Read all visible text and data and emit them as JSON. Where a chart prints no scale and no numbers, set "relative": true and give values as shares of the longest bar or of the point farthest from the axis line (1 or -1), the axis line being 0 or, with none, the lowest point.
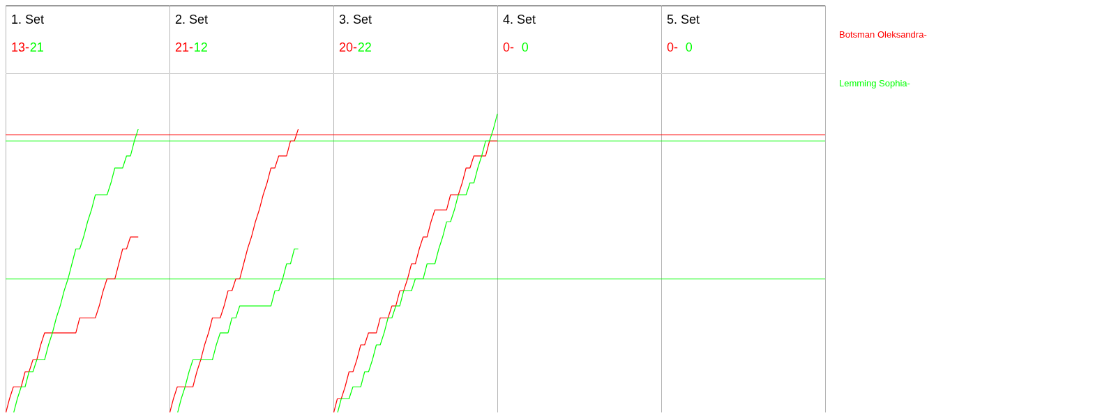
{
  "chart_data": {
    "type": "line",
    "relative": true,
    "legend": "right",
    "annotations": [
      "1. Set",
      "13-",
      "21",
      "2. Set",
      "21-",
      "12",
      "3. Set",
      "20-",
      "22",
      "4. Set",
      "0-",
      "0",
      "5. Set",
      "0-",
      "0"
    ],
    "categories": [
      null,
      null,
      null,
      null,
      null,
      null,
      null,
      null,
      null,
      null,
      null,
      null,
      null,
      null,
      null,
      null,
      null,
      null,
      null,
      null,
      null,
      null,
      null,
      null,
      null,
      null,
      null,
      null,
      null,
      null,
      null,
      null,
      null,
      null,
      null,
      null,
      null,
      null,
      null,
      null,
      null,
      null,
      null,
      null,
      null,
      null,
      null,
      null,
      null,
      null,
      null,
      null,
      null,
      null,
      null,
      null,
      null,
      null,
      null,
      null,
      null,
      null,
      null,
      null,
      null,
      null,
      null,
      null,
      null,
      null,
      null,
      null,
      null,
      null,
      null,
      null,
      null,
      null,
      null,
      null,
      null,
      null,
      null,
      null,
      null,
      null,
      null,
      null,
      null,
      null,
      null,
      null,
      null,
      null,
      null,
      null,
      null,
      null,
      null,
      null,
      null,
      null,
      null,
      null,
      null,
      null,
      null,
      null,
      null,
      null,
      null,
      null,
      null,
      null,
      null,
      null,
      null,
      null,
      null,
      null,
      null,
      null,
      null,
      null,
      null,
      null,
      null,
      null,
      null,
      null,
      null,
      null,
      null,
      null,
      null,
      null,
      null,
      null,
      null,
      null,
      null,
      null,
      null,
      null,
      null,
      null,
      null,
      null,
      null,
      null,
      null,
      null,
      null,
      null,
      null,
      null,
      null,
      null,
      null,
      null,
      null,
      null,
      null,
      null,
      null,
      null,
      null,
      null,
      null,
      null,
      null,
      null,
      null,
      null,
      null,
      null,
      null,
      null,
      null,
      null,
      null,
      null,
      null,
      null,
      null,
      null,
      null,
      null,
      null,
      null,
      null,
      null,
      null,
      null,
      null,
      null,
      null,
      null,
      null,
      null,
      null,
      null,
      null,
      null,
      null,
      null,
      null,
      null,
      null,
      null,
      null
    ],
    "series": [
      {
        "name": "Botsman Oleksandra-",
        "color": "#ff0000",
        "values": [
          0,
          0.05,
          0.09,
          0.09,
          0.09,
          0.14,
          0.14,
          0.18,
          0.18,
          0.23,
          0.27,
          0.27,
          0.27,
          0.27,
          0.27,
          0.27,
          0.27,
          0.27,
          0.27,
          0.32,
          0.32,
          0.32,
          0.32,
          0.32,
          0.36,
          0.41,
          0.45,
          0.45,
          0.45,
          0.5,
          0.55,
          0.55,
          0.59,
          0.59,
          0.59,
          null,
          null,
          null,
          null,
          null,
          null,
          null,
          null,
          null,
          null,
          null,
          null,
          null,
          null,
          null,
          null,
          null,
          null,
          null,
          null,
          null,
          null,
          null,
          null,
          null,
          null,
          null,
          null,
          null,
          null,
          null,
          null,
          null,
          null,
          null,
          null,
          null,
          null,
          null,
          null,
          null,
          null,
          null,
          null,
          null,
          null,
          null,
          null,
          null,
          null,
          null,
          null,
          null,
          null,
          null,
          null,
          null,
          null,
          null,
          null,
          null,
          null,
          null,
          null,
          null,
          null,
          null,
          null,
          null,
          null,
          null,
          null,
          null,
          null,
          null,
          null,
          null,
          null,
          null,
          null,
          null,
          null,
          null,
          null,
          null,
          null,
          null,
          null,
          null,
          null,
          null,
          null,
          null,
          null,
          null,
          null,
          null,
          null,
          null,
          null,
          null,
          null,
          null,
          null,
          null,
          null,
          null,
          null,
          null,
          null,
          null,
          null,
          null,
          null,
          null,
          null,
          null,
          null,
          null,
          null,
          null,
          null,
          null,
          null,
          null,
          null,
          null,
          null,
          null,
          null,
          null,
          null,
          null,
          null,
          null,
          null,
          null,
          null,
          null,
          null,
          null,
          null,
          null,
          null,
          null,
          null,
          null,
          null,
          null,
          null,
          null,
          null,
          null,
          null,
          null,
          null,
          null,
          null,
          null,
          null,
          null,
          null,
          null,
          null,
          null,
          null,
          null,
          null,
          null,
          null,
          null,
          null,
          null,
          null,
          null,
          null
        ]
      },
      {
        "name": "Lemming Sophia-",
        "color": "#00ff00",
        "values": [
          0,
          0,
          0,
          0.05,
          0.09,
          0.09,
          0.14,
          0.14,
          0.18,
          0.18,
          0.18,
          0.23,
          0.27,
          0.32,
          0.36,
          0.41,
          0.45,
          0.5,
          0.55,
          0.55,
          0.59,
          0.64,
          0.68,
          0.73,
          0.73,
          0.73,
          0.73,
          0.77,
          0.82,
          0.82,
          0.82,
          0.86,
          0.86,
          0.91,
          0.95,
          null,
          null,
          null,
          null,
          null,
          null,
          null,
          null,
          null,
          null,
          null,
          null,
          null,
          null,
          null,
          null,
          null,
          null,
          null,
          null,
          null,
          null,
          null,
          null,
          null,
          null,
          null,
          null,
          null,
          null,
          null,
          null,
          null,
          null,
          null,
          null,
          null,
          null,
          null,
          null,
          null,
          null,
          null,
          null,
          null,
          null,
          null,
          null,
          null,
          null,
          null,
          null,
          null,
          null,
          null,
          null,
          null,
          null,
          null,
          null,
          null,
          null,
          null,
          null,
          null,
          null,
          null,
          null,
          null,
          null,
          null,
          null,
          null,
          null,
          null,
          null,
          null,
          null,
          null,
          null,
          null,
          null,
          null,
          null,
          null,
          null,
          null,
          null,
          null,
          null,
          null,
          null,
          null,
          null,
          null,
          null,
          null,
          null,
          null,
          null,
          null,
          null,
          null,
          null,
          null,
          null,
          null,
          null,
          null,
          null,
          null,
          null,
          null,
          null,
          null,
          null,
          null,
          null,
          null,
          null,
          null,
          null,
          null,
          null,
          null,
          null,
          null,
          null,
          null,
          null,
          null,
          null,
          null,
          null,
          null,
          null,
          null,
          null,
          null,
          null,
          null,
          null,
          null,
          null,
          null,
          null,
          null,
          null,
          null,
          null,
          null,
          null,
          null,
          null,
          null,
          null,
          null,
          null,
          null,
          null,
          null,
          null,
          null,
          null,
          null,
          null,
          null,
          null,
          null,
          null,
          null,
          null,
          null,
          null,
          null,
          null
        ]
      },
      {
        "color": "#ff0000",
        "values": [
          null,
          null,
          null,
          null,
          null,
          null,
          null,
          null,
          null,
          null,
          null,
          null,
          null,
          null,
          null,
          null,
          null,
          null,
          null,
          null,
          null,
          null,
          null,
          null,
          null,
          null,
          null,
          null,
          null,
          null,
          null,
          null,
          null,
          null,
          null,
          null,
          null,
          null,
          null,
          null,
          null,
          null,
          0,
          0.05,
          0.09,
          0.09,
          0.09,
          0.09,
          0.09,
          0.14,
          0.18,
          0.23,
          0.27,
          0.32,
          0.32,
          0.32,
          0.36,
          0.41,
          0.41,
          0.45,
          0.45,
          0.5,
          0.55,
          0.59,
          0.64,
          0.68,
          0.73,
          0.77,
          0.82,
          0.82,
          0.86,
          0.86,
          0.86,
          0.91,
          0.91,
          0.95,
          null,
          null,
          null,
          null,
          null,
          null,
          null,
          null,
          null,
          null,
          null,
          null,
          null,
          null,
          null,
          null,
          null,
          null,
          null,
          null,
          null,
          null,
          null,
          null,
          null,
          null,
          null,
          null,
          null,
          null,
          null,
          null,
          null,
          null,
          null,
          null,
          null,
          null,
          null,
          null,
          null,
          null,
          null,
          null,
          null,
          null,
          null,
          null,
          null,
          null,
          null,
          null,
          null,
          null,
          null,
          null,
          null,
          null,
          null,
          null,
          null,
          null,
          null,
          null,
          null,
          null,
          null,
          null,
          null,
          null,
          null,
          null,
          null,
          null,
          null,
          null,
          null,
          null,
          null,
          null,
          null,
          null,
          null,
          null,
          null,
          null,
          null,
          null,
          null,
          null,
          null,
          null,
          null,
          null,
          null,
          null,
          null,
          null,
          null,
          null,
          null,
          null,
          null,
          null,
          null,
          null,
          null,
          null,
          null,
          null,
          null,
          null,
          null,
          null,
          null,
          null,
          null,
          null,
          null,
          null,
          null,
          null,
          null,
          null,
          null,
          null,
          null,
          null,
          null,
          null,
          null,
          null,
          null,
          null,
          null
        ]
      },
      {
        "color": "#00ff00",
        "values": [
          null,
          null,
          null,
          null,
          null,
          null,
          null,
          null,
          null,
          null,
          null,
          null,
          null,
          null,
          null,
          null,
          null,
          null,
          null,
          null,
          null,
          null,
          null,
          null,
          null,
          null,
          null,
          null,
          null,
          null,
          null,
          null,
          null,
          null,
          null,
          null,
          null,
          null,
          null,
          null,
          null,
          null,
          0,
          0,
          0,
          0.05,
          0.09,
          0.14,
          0.18,
          0.18,
          0.18,
          0.18,
          0.18,
          0.18,
          0.23,
          0.27,
          0.27,
          0.27,
          0.32,
          0.32,
          0.36,
          0.36,
          0.36,
          0.36,
          0.36,
          0.36,
          0.36,
          0.36,
          0.36,
          0.41,
          0.41,
          0.45,
          0.5,
          0.5,
          0.55,
          0.55,
          null,
          null,
          null,
          null,
          null,
          null,
          null,
          null,
          null,
          null,
          null,
          null,
          null,
          null,
          null,
          null,
          null,
          null,
          null,
          null,
          null,
          null,
          null,
          null,
          null,
          null,
          null,
          null,
          null,
          null,
          null,
          null,
          null,
          null,
          null,
          null,
          null,
          null,
          null,
          null,
          null,
          null,
          null,
          null,
          null,
          null,
          null,
          null,
          null,
          null,
          null,
          null,
          null,
          null,
          null,
          null,
          null,
          null,
          null,
          null,
          null,
          null,
          null,
          null,
          null,
          null,
          null,
          null,
          null,
          null,
          null,
          null,
          null,
          null,
          null,
          null,
          null,
          null,
          null,
          null,
          null,
          null,
          null,
          null,
          null,
          null,
          null,
          null,
          null,
          null,
          null,
          null,
          null,
          null,
          null,
          null,
          null,
          null,
          null,
          null,
          null,
          null,
          null,
          null,
          null,
          null,
          null,
          null,
          null,
          null,
          null,
          null,
          null,
          null,
          null,
          null,
          null,
          null,
          null,
          null,
          null,
          null,
          null,
          null,
          null,
          null,
          null,
          null,
          null,
          null,
          null,
          null,
          null,
          null,
          null
        ]
      },
      {
        "color": "#ff0000",
        "values": [
          null,
          null,
          null,
          null,
          null,
          null,
          null,
          null,
          null,
          null,
          null,
          null,
          null,
          null,
          null,
          null,
          null,
          null,
          null,
          null,
          null,
          null,
          null,
          null,
          null,
          null,
          null,
          null,
          null,
          null,
          null,
          null,
          null,
          null,
          null,
          null,
          null,
          null,
          null,
          null,
          null,
          null,
          null,
          null,
          null,
          null,
          null,
          null,
          null,
          null,
          null,
          null,
          null,
          null,
          null,
          null,
          null,
          null,
          null,
          null,
          null,
          null,
          null,
          null,
          null,
          null,
          null,
          null,
          null,
          null,
          null,
          null,
          null,
          null,
          null,
          null,
          null,
          null,
          null,
          null,
          null,
          null,
          null,
          null,
          0,
          0.05,
          0.05,
          0.09,
          0.14,
          0.14,
          0.18,
          0.23,
          0.23,
          0.27,
          0.27,
          0.27,
          0.32,
          0.32,
          0.32,
          0.36,
          0.36,
          0.41,
          0.41,
          0.45,
          0.5,
          0.5,
          0.55,
          0.59,
          0.59,
          0.64,
          0.68,
          0.68,
          0.68,
          0.68,
          0.73,
          0.73,
          0.73,
          0.77,
          0.82,
          0.82,
          0.86,
          0.86,
          0.86,
          0.86,
          0.91,
          0.91,
          0.91,
          null,
          null,
          null,
          null,
          null,
          null,
          null,
          null,
          null,
          null,
          null,
          null,
          null,
          null,
          null,
          null,
          null,
          null,
          null,
          null,
          null,
          null,
          null,
          null,
          null,
          null,
          null,
          null,
          null,
          null,
          null,
          null,
          null,
          null,
          null,
          null,
          null,
          null,
          null,
          null,
          null,
          null,
          null,
          null,
          null,
          null,
          null,
          null,
          null,
          null,
          null,
          null,
          null,
          null,
          null,
          null,
          null,
          null,
          null,
          null,
          null,
          null,
          null,
          null,
          null,
          null,
          null,
          null,
          null,
          null,
          null,
          null,
          null,
          null,
          null,
          null,
          null,
          null,
          null,
          null,
          null,
          null,
          null,
          null
        ]
      },
      {
        "color": "#00ff00",
        "values": [
          null,
          null,
          null,
          null,
          null,
          null,
          null,
          null,
          null,
          null,
          null,
          null,
          null,
          null,
          null,
          null,
          null,
          null,
          null,
          null,
          null,
          null,
          null,
          null,
          null,
          null,
          null,
          null,
          null,
          null,
          null,
          null,
          null,
          null,
          null,
          null,
          null,
          null,
          null,
          null,
          null,
          null,
          null,
          null,
          null,
          null,
          null,
          null,
          null,
          null,
          null,
          null,
          null,
          null,
          null,
          null,
          null,
          null,
          null,
          null,
          null,
          null,
          null,
          null,
          null,
          null,
          null,
          null,
          null,
          null,
          null,
          null,
          null,
          null,
          null,
          null,
          null,
          null,
          null,
          null,
          null,
          null,
          null,
          null,
          0,
          0,
          0.05,
          0.05,
          0.05,
          0.09,
          0.09,
          0.09,
          0.14,
          0.14,
          0.18,
          0.23,
          0.23,
          0.27,
          0.32,
          0.32,
          0.36,
          0.36,
          0.41,
          0.41,
          0.41,
          0.45,
          0.45,
          0.45,
          0.5,
          0.5,
          0.5,
          0.55,
          0.59,
          0.64,
          0.64,
          0.68,
          0.73,
          0.73,
          0.73,
          0.77,
          0.77,
          0.82,
          0.86,
          0.91,
          0.91,
          0.95,
          1,
          null,
          null,
          null,
          null,
          null,
          null,
          null,
          null,
          null,
          null,
          null,
          null,
          null,
          null,
          null,
          null,
          null,
          null,
          null,
          null,
          null,
          null,
          null,
          null,
          null,
          null,
          null,
          null,
          null,
          null,
          null,
          null,
          null,
          null,
          null,
          null,
          null,
          null,
          null,
          null,
          null,
          null,
          null,
          null,
          null,
          null,
          null,
          null,
          null,
          null,
          null,
          null,
          null,
          null,
          null,
          null,
          null,
          null,
          null,
          null,
          null,
          null,
          null,
          null,
          null,
          null,
          null,
          null,
          null,
          null,
          null,
          null,
          null,
          null,
          null,
          null,
          null,
          null,
          null,
          null,
          null,
          null,
          null,
          null
        ]
      }
    ],
    "ref_lines": [
      {
        "axis": "y",
        "value": 0.93,
        "color": "#ff0000"
      },
      {
        "axis": "y",
        "value": 0.91,
        "color": "#00ff00"
      },
      {
        "axis": "y",
        "value": 0.45,
        "color": "#00ff00"
      }
    ]
  }
}
